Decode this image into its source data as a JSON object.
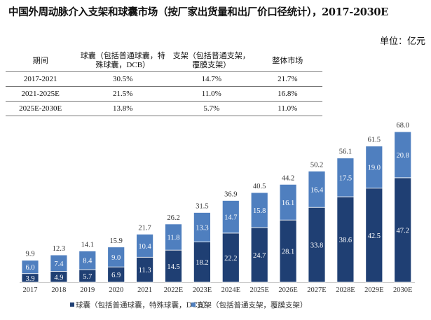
{
  "title": "中国外周动脉介入支架和球囊市场（按厂家出货量和出厂价口径统计），2017-2030E",
  "unit": "单位：亿元",
  "cagr_table": {
    "headers": [
      "期间",
      "球囊（包括普通球囊，特殊球囊，DCB）",
      "支架（包括普通支架，覆膜支架）",
      "整体市场"
    ],
    "rows": [
      [
        "2017-2021",
        "30.5%",
        "14.7%",
        "21.7%"
      ],
      [
        "2021-2025E",
        "21.5%",
        "11.0%",
        "16.8%"
      ],
      [
        "2025E-2030E",
        "13.8%",
        "5.7%",
        "11.0%"
      ]
    ]
  },
  "chart_data": {
    "type": "bar",
    "stacked": true,
    "categories": [
      "2017",
      "2018",
      "2019",
      "2020",
      "2021",
      "2022E",
      "2023E",
      "2024E",
      "2025E",
      "2026E",
      "2027E",
      "2028E",
      "2029E",
      "2030E"
    ],
    "series": [
      {
        "name": "球囊（包括普通球囊，特殊球囊，DCB）",
        "color": "#1f3f73",
        "values": [
          3.9,
          4.9,
          5.7,
          6.9,
          11.3,
          14.5,
          18.2,
          22.2,
          24.7,
          28.1,
          33.8,
          38.6,
          42.5,
          47.2
        ]
      },
      {
        "name": "支架（包括普通支架，覆膜支架）",
        "color": "#4f7fbf",
        "values": [
          6.0,
          7.4,
          8.4,
          9.0,
          10.4,
          11.8,
          13.3,
          14.7,
          15.8,
          16.1,
          16.4,
          17.5,
          19.0,
          20.8
        ]
      }
    ],
    "totals": [
      9.9,
      12.3,
      14.1,
      15.9,
      21.7,
      26.2,
      31.5,
      36.9,
      40.5,
      44.2,
      50.2,
      56.1,
      61.5,
      68.0
    ],
    "ylim": [
      0,
      70
    ],
    "legend": "bottom",
    "grid": false
  }
}
